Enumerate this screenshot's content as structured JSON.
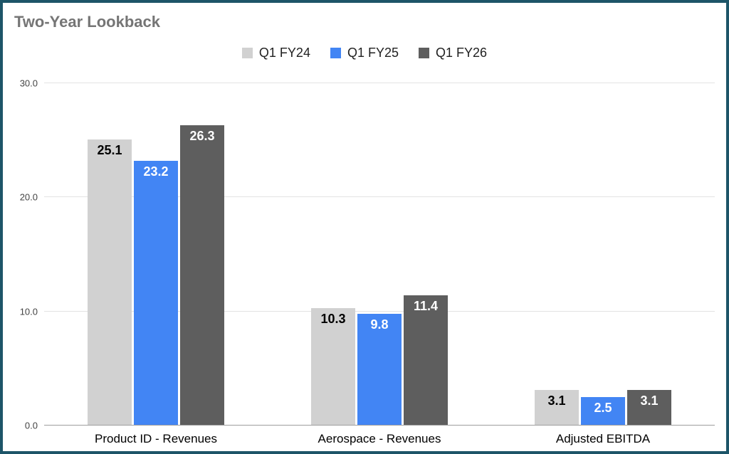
{
  "title": "Two-Year Lookback",
  "colors": {
    "frame_border": "#1d5568",
    "title_text": "#757575",
    "gridline": "#e3e3e3",
    "baseline": "#9e9e9e"
  },
  "chart_data": {
    "type": "bar",
    "title": "Two-Year Lookback",
    "categories": [
      "Product ID - Revenues",
      "Aerospace - Revenues",
      "Adjusted EBITDA"
    ],
    "series": [
      {
        "name": "Q1 FY24",
        "color": "#d1d1d1",
        "label_color": "#000000",
        "values": [
          25.1,
          10.3,
          3.1
        ]
      },
      {
        "name": "Q1 FY25",
        "color": "#4285f4",
        "label_color": "#ffffff",
        "values": [
          23.2,
          9.8,
          2.5
        ]
      },
      {
        "name": "Q1 FY26",
        "color": "#5e5e5e",
        "label_color": "#ffffff",
        "values": [
          26.3,
          11.4,
          3.1
        ]
      }
    ],
    "xlabel": "",
    "ylabel": "",
    "ylim": [
      0,
      30
    ],
    "yticks": [
      "0.0",
      "10.0",
      "20.0",
      "30.0"
    ],
    "grid": true,
    "legend_position": "top",
    "data_labels": "inside-top"
  }
}
